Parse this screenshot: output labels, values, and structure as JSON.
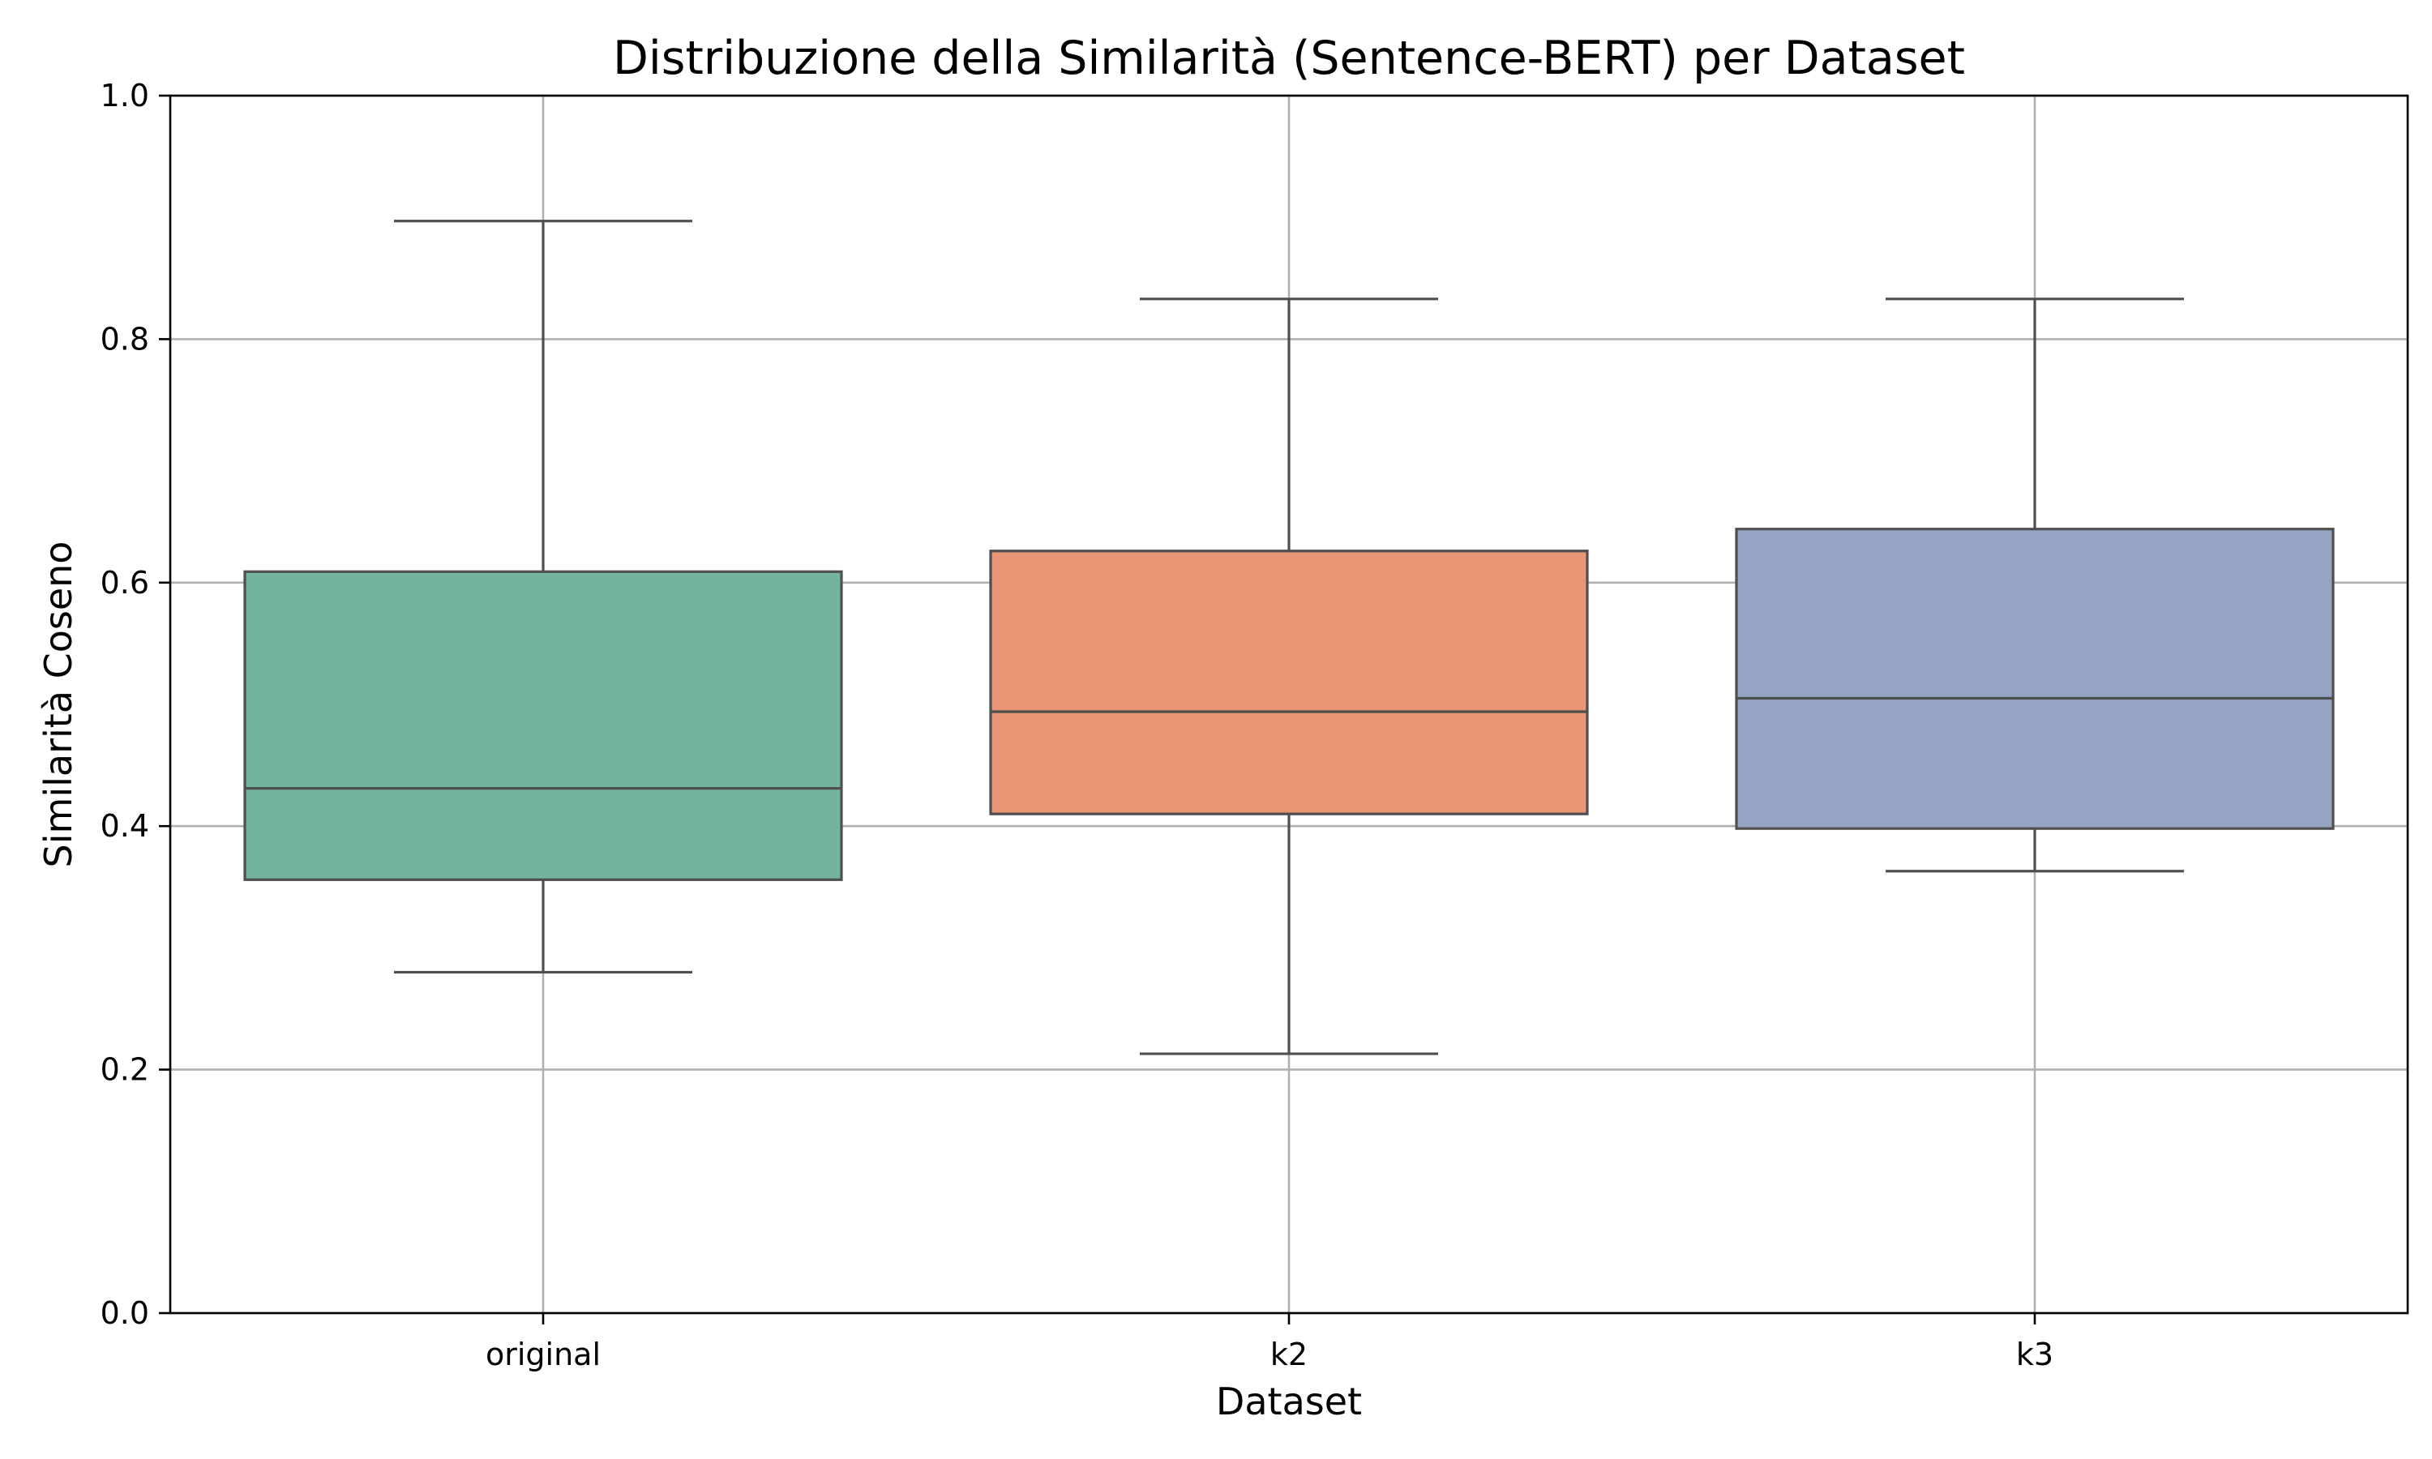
{
  "chart_data": {
    "type": "box",
    "title": "Distribuzione della Similarità (Sentence-BERT) per Dataset",
    "xlabel": "Dataset",
    "ylabel": "Similarità Coseno",
    "ylim": [
      0,
      1
    ],
    "yticks": [
      0.0,
      0.2,
      0.4,
      0.6,
      0.8,
      1.0
    ],
    "ytick_labels": [
      "0.0",
      "0.2",
      "0.4",
      "0.6",
      "0.8",
      "1.0"
    ],
    "grid": true,
    "categories": [
      "original",
      "k2",
      "k3"
    ],
    "boxes": [
      {
        "label": "original",
        "whisker_low": 0.28,
        "q1": 0.356,
        "median": 0.431,
        "q3": 0.609,
        "whisker_high": 0.897,
        "color": "#73b4a0"
      },
      {
        "label": "k2",
        "whisker_low": 0.213,
        "q1": 0.41,
        "median": 0.494,
        "q3": 0.626,
        "whisker_high": 0.833,
        "color": "#e89675"
      },
      {
        "label": "k3",
        "whisker_low": 0.363,
        "q1": 0.398,
        "median": 0.505,
        "q3": 0.644,
        "whisker_high": 0.833,
        "color": "#95a4c2"
      }
    ],
    "edge_color": "#4f4f4f"
  }
}
